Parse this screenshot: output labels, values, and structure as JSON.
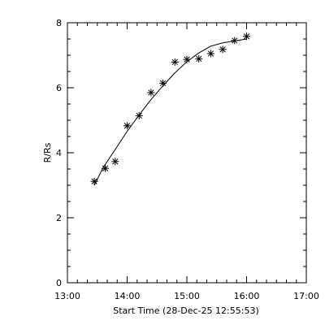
{
  "chart_data": {
    "type": "scatter",
    "title": "",
    "xlabel": "Start Time (28-Dec-25 12:55:53)",
    "ylabel": "R/Rs",
    "x_tick_labels": [
      "13:00",
      "14:00",
      "15:00",
      "16:00",
      "17:00"
    ],
    "y_tick_labels": [
      "0",
      "2",
      "4",
      "6",
      "8"
    ],
    "x_ticks": [
      "13:00",
      "14:00",
      "15:00",
      "16:00",
      "17:00"
    ],
    "y_ticks": [
      0,
      2,
      4,
      6,
      8
    ],
    "xlim": [
      "13:00",
      "17:00"
    ],
    "ylim": [
      0,
      8
    ],
    "grid": false,
    "series": [
      {
        "marker": "asterisk",
        "x": [
          "13:27",
          "13:38",
          "13:48",
          "14:00",
          "14:12",
          "14:24",
          "14:36",
          "14:48",
          "15:00",
          "15:12",
          "15:24",
          "15:36",
          "15:48",
          "16:00"
        ],
        "y": [
          3.12,
          3.52,
          3.73,
          4.83,
          5.14,
          5.85,
          6.14,
          6.79,
          6.87,
          6.89,
          7.05,
          7.18,
          7.45,
          7.58
        ]
      },
      {
        "marker": "none",
        "line": "solid",
        "x": [
          "13:27",
          "13:36",
          "13:48",
          "14:00",
          "14:12",
          "14:24",
          "14:36",
          "14:48",
          "15:00",
          "15:12",
          "15:24",
          "15:36",
          "15:48",
          "16:00"
        ],
        "y": [
          3.0,
          3.55,
          4.1,
          4.66,
          5.16,
          5.64,
          6.06,
          6.46,
          6.8,
          7.07,
          7.28,
          7.38,
          7.44,
          7.5
        ]
      }
    ]
  }
}
